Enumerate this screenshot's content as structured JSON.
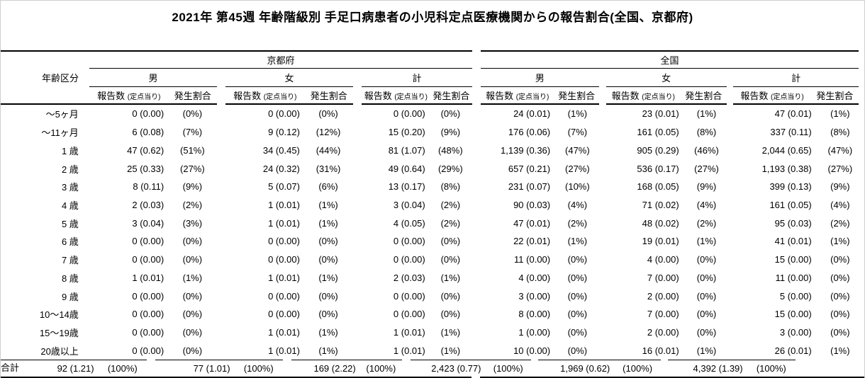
{
  "chart_data": {
    "type": "table",
    "title": "2021年 第45週 年齢階級別 手足口病患者の小児科定点医療機関からの報告割合(全国、京都府)",
    "age_col_header": "年齢区分",
    "region_headers": [
      "京都府",
      "全国"
    ],
    "sex_headers": [
      "男",
      "女",
      "計"
    ],
    "count_header": "報告数",
    "count_header_sub": "(定点当り)",
    "rate_header": "発生割合",
    "columns_note": "per row cells order: 京都府男[報告数,割合], 京都府女, 京都府計, 全国男, 全国女, 全国計",
    "rows": [
      {
        "age": "〜5ヶ月",
        "cells": [
          "0 (0.00)",
          "(0%)",
          "0 (0.00)",
          "(0%)",
          "0 (0.00)",
          "(0%)",
          "24 (0.01)",
          "(1%)",
          "23 (0.01)",
          "(1%)",
          "47 (0.01)",
          "(1%)"
        ]
      },
      {
        "age": "〜11ヶ月",
        "cells": [
          "6 (0.08)",
          "(7%)",
          "9 (0.12)",
          "(12%)",
          "15 (0.20)",
          "(9%)",
          "176 (0.06)",
          "(7%)",
          "161 (0.05)",
          "(8%)",
          "337 (0.11)",
          "(8%)"
        ]
      },
      {
        "age": "1 歳",
        "cells": [
          "47 (0.62)",
          "(51%)",
          "34 (0.45)",
          "(44%)",
          "81 (1.07)",
          "(48%)",
          "1,139 (0.36)",
          "(47%)",
          "905 (0.29)",
          "(46%)",
          "2,044 (0.65)",
          "(47%)"
        ]
      },
      {
        "age": "2 歳",
        "cells": [
          "25 (0.33)",
          "(27%)",
          "24 (0.32)",
          "(31%)",
          "49 (0.64)",
          "(29%)",
          "657 (0.21)",
          "(27%)",
          "536 (0.17)",
          "(27%)",
          "1,193 (0.38)",
          "(27%)"
        ]
      },
      {
        "age": "3 歳",
        "cells": [
          "8 (0.11)",
          "(9%)",
          "5 (0.07)",
          "(6%)",
          "13 (0.17)",
          "(8%)",
          "231 (0.07)",
          "(10%)",
          "168 (0.05)",
          "(9%)",
          "399 (0.13)",
          "(9%)"
        ]
      },
      {
        "age": "4 歳",
        "cells": [
          "2 (0.03)",
          "(2%)",
          "1 (0.01)",
          "(1%)",
          "3 (0.04)",
          "(2%)",
          "90 (0.03)",
          "(4%)",
          "71 (0.02)",
          "(4%)",
          "161 (0.05)",
          "(4%)"
        ]
      },
      {
        "age": "5 歳",
        "cells": [
          "3 (0.04)",
          "(3%)",
          "1 (0.01)",
          "(1%)",
          "4 (0.05)",
          "(2%)",
          "47 (0.01)",
          "(2%)",
          "48 (0.02)",
          "(2%)",
          "95 (0.03)",
          "(2%)"
        ]
      },
      {
        "age": "6 歳",
        "cells": [
          "0 (0.00)",
          "(0%)",
          "0 (0.00)",
          "(0%)",
          "0 (0.00)",
          "(0%)",
          "22 (0.01)",
          "(1%)",
          "19 (0.01)",
          "(1%)",
          "41 (0.01)",
          "(1%)"
        ]
      },
      {
        "age": "7 歳",
        "cells": [
          "0 (0.00)",
          "(0%)",
          "0 (0.00)",
          "(0%)",
          "0 (0.00)",
          "(0%)",
          "11 (0.00)",
          "(0%)",
          "4 (0.00)",
          "(0%)",
          "15 (0.00)",
          "(0%)"
        ]
      },
      {
        "age": "8 歳",
        "cells": [
          "1 (0.01)",
          "(1%)",
          "1 (0.01)",
          "(1%)",
          "2 (0.03)",
          "(1%)",
          "4 (0.00)",
          "(0%)",
          "7 (0.00)",
          "(0%)",
          "11 (0.00)",
          "(0%)"
        ]
      },
      {
        "age": "9 歳",
        "cells": [
          "0 (0.00)",
          "(0%)",
          "0 (0.00)",
          "(0%)",
          "0 (0.00)",
          "(0%)",
          "3 (0.00)",
          "(0%)",
          "2 (0.00)",
          "(0%)",
          "5 (0.00)",
          "(0%)"
        ]
      },
      {
        "age": "10〜14歳",
        "cells": [
          "0 (0.00)",
          "(0%)",
          "0 (0.00)",
          "(0%)",
          "0 (0.00)",
          "(0%)",
          "8 (0.00)",
          "(0%)",
          "7 (0.00)",
          "(0%)",
          "15 (0.00)",
          "(0%)"
        ]
      },
      {
        "age": "15〜19歳",
        "cells": [
          "0 (0.00)",
          "(0%)",
          "1 (0.01)",
          "(1%)",
          "1 (0.01)",
          "(1%)",
          "1 (0.00)",
          "(0%)",
          "2 (0.00)",
          "(0%)",
          "3 (0.00)",
          "(0%)"
        ]
      },
      {
        "age": "20歳以上",
        "cells": [
          "0 (0.00)",
          "(0%)",
          "1 (0.01)",
          "(1%)",
          "1 (0.01)",
          "(1%)",
          "10 (0.00)",
          "(0%)",
          "16 (0.01)",
          "(1%)",
          "26 (0.01)",
          "(1%)"
        ]
      }
    ],
    "total_row": {
      "age": "合計",
      "cells": [
        "92 (1.21)",
        "(100%)",
        "77 (1.01)",
        "(100%)",
        "169 (2.22)",
        "(100%)",
        "2,423 (0.77)",
        "(100%)",
        "1,969 (0.62)",
        "(100%)",
        "4,392 (1.39)",
        "(100%)"
      ]
    }
  }
}
